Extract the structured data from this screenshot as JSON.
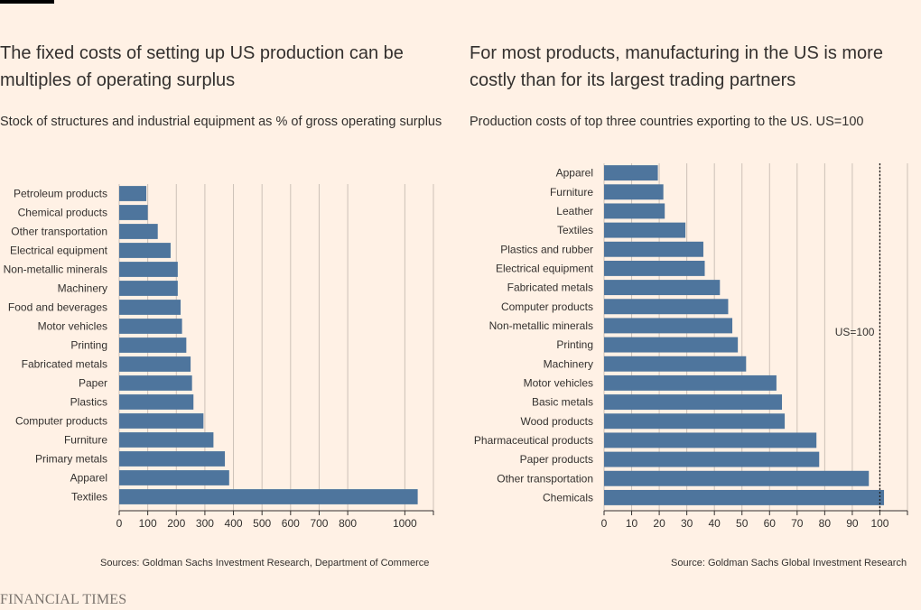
{
  "colors": {
    "background": "#fff1e5",
    "bar": "#4e759d",
    "grid": "#ccc1b7",
    "text": "#33302e"
  },
  "left": {
    "title": "The fixed costs of setting up US production can be multiples of operating surplus",
    "subtitle": "Stock of structures and industrial equipment as % of gross operating surplus",
    "source": "Sources: Goldman Sachs Investment Research, Department of Commerce"
  },
  "right": {
    "title": "For most products, manufacturing in the US is more costly than for its largest trading partners",
    "subtitle": "Production costs of top three countries exporting to the US. US=100",
    "source": "Source: Goldman Sachs Global Investment Research"
  },
  "footer": {
    "brand": "FINANCIAL TIMES"
  },
  "chart_data": [
    {
      "type": "bar",
      "orientation": "horizontal",
      "title": "The fixed costs of setting up US production can be multiples of operating surplus",
      "subtitle": "Stock of structures and industrial equipment as % of gross operating surplus",
      "categories": [
        "Petroleum products",
        "Chemical products",
        "Other transportation",
        "Electrical equipment",
        "Non-metallic minerals",
        "Machinery",
        "Food and beverages",
        "Motor vehicles",
        "Printing",
        "Fabricated metals",
        "Paper",
        "Plastics",
        "Computer products",
        "Furniture",
        "Primary metals",
        "Apparel",
        "Textiles"
      ],
      "values": [
        95,
        100,
        135,
        180,
        205,
        205,
        215,
        220,
        235,
        250,
        255,
        260,
        295,
        330,
        370,
        385,
        1045
      ],
      "xlim": [
        0,
        1100
      ],
      "xticks": [
        0,
        100,
        200,
        300,
        400,
        500,
        600,
        700,
        800,
        1000
      ],
      "grid": true
    },
    {
      "type": "bar",
      "orientation": "horizontal",
      "title": "For most products, manufacturing in the US is more costly than for its largest trading partners",
      "subtitle": "Production costs of top three countries exporting to the US. US=100",
      "categories": [
        "Apparel",
        "Furniture",
        "Leather",
        "Textiles",
        "Plastics and rubber",
        "Electrical equipment",
        "Fabricated metals",
        "Computer products",
        "Non-metallic minerals",
        "Printing",
        "Machinery",
        "Motor vehicles",
        "Basic metals",
        "Wood products",
        "Pharmaceutical products",
        "Paper products",
        "Other transportation",
        "Chemicals"
      ],
      "values": [
        19.5,
        21.5,
        22,
        29.5,
        36,
        36.5,
        42,
        45,
        46.5,
        48.5,
        51.5,
        62.5,
        64.5,
        65.5,
        77,
        78,
        96,
        101.5
      ],
      "xlim": [
        0,
        110
      ],
      "xticks": [
        0,
        10,
        20,
        30,
        40,
        50,
        60,
        70,
        80,
        90,
        100
      ],
      "grid": true,
      "reference_line": {
        "value": 100,
        "label": "US=100"
      }
    }
  ]
}
